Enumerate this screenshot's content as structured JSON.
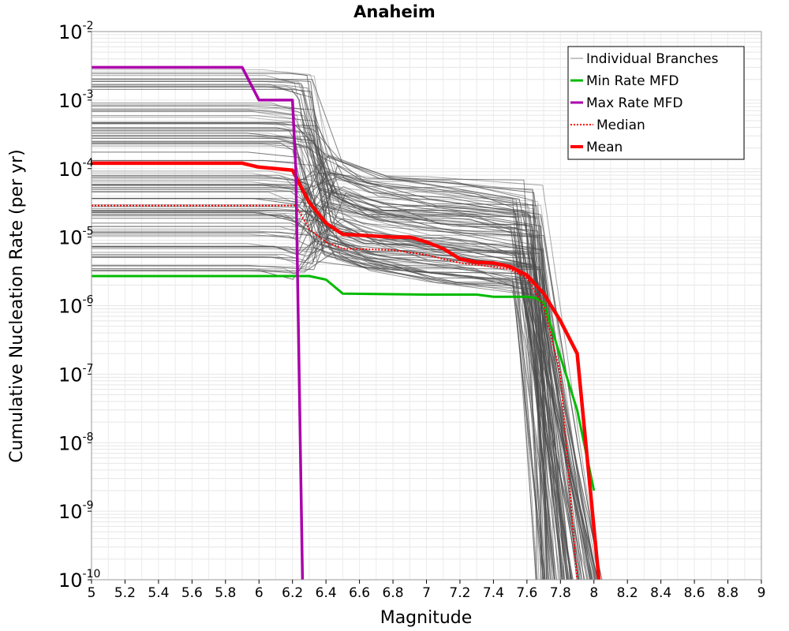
{
  "chart_data": {
    "type": "line",
    "title": "Anaheim",
    "xlabel": "Magnitude",
    "ylabel": "Cumulative Nucleation Rate (per yr)",
    "xlim": [
      5,
      9
    ],
    "ylim": [
      1e-10,
      0.01
    ],
    "yscale": "log",
    "grid": true,
    "legend_position": "top-right",
    "x_ticks": [
      "5",
      "5.2",
      "5.4",
      "5.6",
      "5.8",
      "6",
      "6.2",
      "6.4",
      "6.6",
      "6.8",
      "7",
      "7.2",
      "7.4",
      "7.6",
      "7.8",
      "8",
      "8.2",
      "8.4",
      "8.6",
      "8.8",
      "9"
    ],
    "y_ticks": [
      {
        "base": "10",
        "exp": "-10"
      },
      {
        "base": "10",
        "exp": "-9"
      },
      {
        "base": "10",
        "exp": "-8"
      },
      {
        "base": "10",
        "exp": "-7"
      },
      {
        "base": "10",
        "exp": "-6"
      },
      {
        "base": "10",
        "exp": "-5"
      },
      {
        "base": "10",
        "exp": "-4"
      },
      {
        "base": "10",
        "exp": "-3"
      },
      {
        "base": "10",
        "exp": "-2"
      }
    ],
    "series": [
      {
        "name": "Individual Branches",
        "color": "#555555",
        "style": "thin",
        "description_values": "many gray curves"
      },
      {
        "name": "Min Rate MFD",
        "color": "#00bb00",
        "style": "solid",
        "x": [
          5,
          6.2,
          6.3,
          6.4,
          6.5,
          7.0,
          7.3,
          7.4,
          7.6,
          7.65,
          7.7,
          7.8,
          7.9,
          8.0
        ],
        "y": [
          2.7e-06,
          2.7e-06,
          2.7e-06,
          2.4e-06,
          1.5e-06,
          1.45e-06,
          1.45e-06,
          1.35e-06,
          1.35e-06,
          1.3e-06,
          1.1e-06,
          1.8e-07,
          3e-08,
          2e-09
        ]
      },
      {
        "name": "Max Rate MFD",
        "color": "#aa00aa",
        "style": "solid",
        "x": [
          5,
          5.9,
          6.0,
          6.2,
          6.22,
          6.26
        ],
        "y": [
          0.003,
          0.003,
          0.001,
          0.001,
          0.0001,
          1e-10
        ]
      },
      {
        "name": "Median",
        "color": "#ff0000",
        "style": "dotted",
        "x": [
          5,
          6.2,
          6.22,
          6.3,
          6.4,
          6.5,
          6.8,
          7.0,
          7.2,
          7.4,
          7.5,
          7.6,
          7.7,
          7.8,
          7.9
        ],
        "y": [
          2.9e-05,
          2.9e-05,
          2.9e-05,
          1.3e-05,
          8.5e-06,
          6.8e-06,
          6.5e-06,
          5.5e-06,
          4.2e-06,
          3.7e-06,
          3.4e-06,
          2.5e-06,
          1e-06,
          1e-07,
          1e-10
        ]
      },
      {
        "name": "Mean",
        "color": "#ff0000",
        "style": "thick",
        "x": [
          5,
          5.9,
          6.0,
          6.2,
          6.25,
          6.3,
          6.4,
          6.5,
          6.8,
          6.9,
          7.0,
          7.1,
          7.2,
          7.3,
          7.4,
          7.5,
          7.6,
          7.7,
          7.8,
          7.9,
          8.03
        ],
        "y": [
          0.00012,
          0.00012,
          0.000105,
          9.5e-05,
          5.5e-05,
          3.2e-05,
          1.6e-05,
          1.1e-05,
          1e-05,
          1e-05,
          8.5e-06,
          6.8e-06,
          4.8e-06,
          4.3e-06,
          4.2e-06,
          3.7e-06,
          2.8e-06,
          1.5e-06,
          6e-07,
          2e-07,
          1e-10
        ]
      }
    ]
  }
}
